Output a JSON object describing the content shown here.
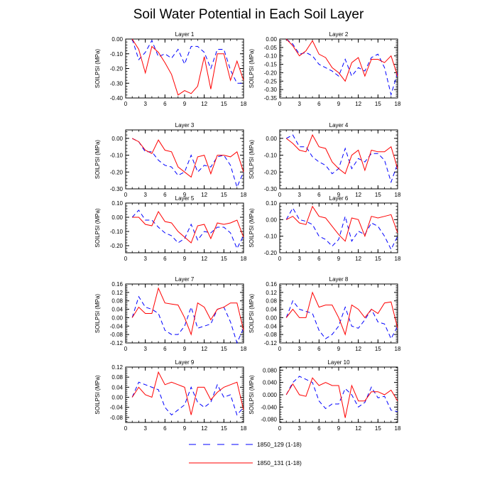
{
  "title": "Soil Water Potential in Each Soil Layer",
  "legend": [
    {
      "label": "1850_129 (1-18)",
      "color": "#0000ff",
      "dash": true
    },
    {
      "label": "1850_131 (1-18)",
      "color": "#ff0000",
      "dash": false
    }
  ],
  "chart_data": [
    {
      "type": "line",
      "title": "Layer 1",
      "ylabel": "SOILPSI  (MPa)",
      "xlim": [
        0,
        18
      ],
      "ylim": [
        -0.4,
        0
      ],
      "xticks": [
        0,
        3,
        6,
        9,
        12,
        15,
        18
      ],
      "xtick_labels": [
        "0",
        "3",
        "6",
        "9",
        "12",
        "15",
        "18"
      ],
      "yticks": [
        -0.4,
        -0.3,
        -0.2,
        -0.1,
        0
      ],
      "ytick_labels": [
        "-0.40",
        "-0.30",
        "-0.20",
        "-0.10",
        "0.00"
      ],
      "x": [
        1,
        2,
        3,
        4,
        5,
        6,
        7,
        8,
        9,
        10,
        11,
        12,
        13,
        14,
        15,
        16,
        17,
        18
      ],
      "series": [
        {
          "name": "1850_129 (1-18)",
          "values": [
            0,
            -0.14,
            -0.09,
            -0.01,
            -0.12,
            -0.1,
            -0.13,
            -0.07,
            -0.17,
            -0.05,
            -0.05,
            -0.09,
            -0.2,
            -0.07,
            -0.07,
            -0.21,
            -0.3,
            -0.3
          ]
        },
        {
          "name": "1850_131 (1-18)",
          "values": [
            0,
            -0.07,
            -0.23,
            -0.05,
            -0.09,
            -0.16,
            -0.24,
            -0.38,
            -0.35,
            -0.37,
            -0.32,
            -0.12,
            -0.34,
            -0.1,
            -0.1,
            -0.28,
            -0.15,
            -0.28
          ]
        }
      ]
    },
    {
      "type": "line",
      "title": "Layer 2",
      "ylabel": "SOILPSI  (MPa)",
      "xlim": [
        0,
        18
      ],
      "ylim": [
        -0.35,
        0
      ],
      "xticks": [
        0,
        3,
        6,
        9,
        12,
        15,
        18
      ],
      "xtick_labels": [
        "0",
        "3",
        "6",
        "9",
        "12",
        "15",
        "18"
      ],
      "yticks": [
        -0.35,
        -0.3,
        -0.25,
        -0.2,
        -0.15,
        -0.1,
        -0.05,
        0
      ],
      "ytick_labels": [
        "-0.35",
        "-0.30",
        "-0.25",
        "-0.20",
        "-0.15",
        "-0.10",
        "-0.05",
        "0.00"
      ],
      "x": [
        1,
        2,
        3,
        4,
        5,
        6,
        7,
        8,
        9,
        10,
        11,
        12,
        13,
        14,
        15,
        16,
        17,
        18
      ],
      "series": [
        {
          "name": "1850_129 (1-18)",
          "values": [
            0,
            -0.03,
            -0.09,
            -0.08,
            -0.1,
            -0.15,
            -0.17,
            -0.19,
            -0.22,
            -0.12,
            -0.22,
            -0.17,
            -0.19,
            -0.11,
            -0.09,
            -0.17,
            -0.33,
            -0.2
          ]
        },
        {
          "name": "1850_131 (1-18)",
          "values": [
            0,
            -0.04,
            -0.1,
            -0.07,
            -0.01,
            -0.09,
            -0.11,
            -0.17,
            -0.2,
            -0.25,
            -0.14,
            -0.11,
            -0.22,
            -0.12,
            -0.12,
            -0.14,
            -0.1,
            -0.22
          ]
        }
      ]
    },
    {
      "type": "line",
      "title": "Layer 3",
      "ylabel": "SOILPSI  (MPa)",
      "xlim": [
        0,
        18
      ],
      "ylim": [
        -0.3,
        0.05
      ],
      "xticks": [
        0,
        3,
        6,
        9,
        12,
        15,
        18
      ],
      "xtick_labels": [
        "0",
        "3",
        "6",
        "9",
        "12",
        "15",
        "18"
      ],
      "yticks": [
        -0.3,
        -0.2,
        -0.1,
        0
      ],
      "ytick_labels": [
        "-0.30",
        "-0.20",
        "-0.10",
        "0.00"
      ],
      "x": [
        1,
        2,
        3,
        4,
        5,
        6,
        7,
        8,
        9,
        10,
        11,
        12,
        13,
        14,
        15,
        16,
        17,
        18
      ],
      "series": [
        {
          "name": "1850_129 (1-18)",
          "values": [
            0,
            -0.02,
            -0.08,
            -0.08,
            -0.13,
            -0.16,
            -0.17,
            -0.22,
            -0.2,
            -0.1,
            -0.2,
            -0.16,
            -0.17,
            -0.11,
            -0.1,
            -0.16,
            -0.29,
            -0.2
          ]
        },
        {
          "name": "1850_131 (1-18)",
          "values": [
            0,
            -0.02,
            -0.07,
            -0.09,
            -0.01,
            -0.07,
            -0.08,
            -0.17,
            -0.2,
            -0.23,
            -0.11,
            -0.1,
            -0.21,
            -0.1,
            -0.1,
            -0.11,
            -0.08,
            -0.2
          ]
        }
      ]
    },
    {
      "type": "line",
      "title": "Layer 4",
      "ylabel": "SOILPSI  (MPa)",
      "xlim": [
        0,
        18
      ],
      "ylim": [
        -0.3,
        0.05
      ],
      "xticks": [
        0,
        3,
        6,
        9,
        12,
        15,
        18
      ],
      "xtick_labels": [
        "0",
        "3",
        "6",
        "9",
        "12",
        "15",
        "18"
      ],
      "yticks": [
        -0.3,
        -0.2,
        -0.1,
        0
      ],
      "ytick_labels": [
        "-0.30",
        "-0.20",
        "-0.10",
        "0.00"
      ],
      "x": [
        1,
        2,
        3,
        4,
        5,
        6,
        7,
        8,
        9,
        10,
        11,
        12,
        13,
        14,
        15,
        16,
        17,
        18
      ],
      "series": [
        {
          "name": "1850_129 (1-18)",
          "values": [
            0,
            0.02,
            -0.05,
            -0.05,
            -0.11,
            -0.14,
            -0.16,
            -0.21,
            -0.18,
            -0.06,
            -0.18,
            -0.12,
            -0.14,
            -0.09,
            -0.09,
            -0.13,
            -0.26,
            -0.15
          ]
        },
        {
          "name": "1850_131 (1-18)",
          "values": [
            0,
            -0.03,
            -0.07,
            -0.08,
            0.02,
            -0.05,
            -0.06,
            -0.14,
            -0.18,
            -0.21,
            -0.1,
            -0.07,
            -0.19,
            -0.07,
            -0.08,
            -0.08,
            -0.05,
            -0.18
          ]
        }
      ]
    },
    {
      "type": "line",
      "title": "Layer 5",
      "ylabel": "SOILPSI  (MPa)",
      "xlim": [
        0,
        18
      ],
      "ylim": [
        -0.25,
        0.1
      ],
      "xticks": [
        0,
        3,
        6,
        9,
        12,
        15,
        18
      ],
      "xtick_labels": [
        "0",
        "3",
        "6",
        "9",
        "12",
        "15",
        "18"
      ],
      "yticks": [
        -0.2,
        -0.1,
        0,
        0.1
      ],
      "ytick_labels": [
        "-0.20",
        "-0.10",
        "0.00",
        "0.10"
      ],
      "x": [
        1,
        2,
        3,
        4,
        5,
        6,
        7,
        8,
        9,
        10,
        11,
        12,
        13,
        14,
        15,
        16,
        17,
        18
      ],
      "series": [
        {
          "name": "1850_129 (1-18)",
          "values": [
            0,
            0.05,
            -0.02,
            -0.02,
            -0.07,
            -0.11,
            -0.13,
            -0.18,
            -0.15,
            -0.05,
            -0.16,
            -0.1,
            -0.11,
            -0.07,
            -0.07,
            -0.11,
            -0.22,
            -0.13
          ]
        },
        {
          "name": "1850_131 (1-18)",
          "values": [
            0,
            0,
            -0.05,
            -0.06,
            0.04,
            -0.03,
            -0.04,
            -0.1,
            -0.14,
            -0.18,
            -0.06,
            -0.05,
            -0.15,
            -0.04,
            -0.05,
            -0.04,
            -0.02,
            -0.14
          ]
        }
      ]
    },
    {
      "type": "line",
      "title": "Layer 6",
      "ylabel": "SOILPSI  (MPa)",
      "xlim": [
        0,
        18
      ],
      "ylim": [
        -0.2,
        0.1
      ],
      "xticks": [
        0,
        3,
        6,
        9,
        12,
        15,
        18
      ],
      "xtick_labels": [
        "0",
        "3",
        "6",
        "9",
        "12",
        "15",
        "18"
      ],
      "yticks": [
        -0.2,
        -0.1,
        0,
        0.1
      ],
      "ytick_labels": [
        "-0.20",
        "-0.10",
        "0.00",
        "0.10"
      ],
      "x": [
        1,
        2,
        3,
        4,
        5,
        6,
        7,
        8,
        9,
        10,
        11,
        12,
        13,
        14,
        15,
        16,
        17,
        18
      ],
      "series": [
        {
          "name": "1850_129 (1-18)",
          "values": [
            0,
            0.07,
            0,
            -0.01,
            -0.03,
            -0.1,
            -0.12,
            -0.16,
            -0.12,
            0.02,
            -0.13,
            -0.07,
            -0.09,
            -0.02,
            -0.04,
            -0.1,
            -0.18,
            -0.1
          ]
        },
        {
          "name": "1850_131 (1-18)",
          "values": [
            0,
            0.02,
            -0.02,
            -0.03,
            0.08,
            0.02,
            0.01,
            -0.04,
            -0.09,
            -0.13,
            0.01,
            0,
            -0.1,
            0.02,
            0.01,
            0.02,
            0.03,
            -0.08
          ]
        }
      ]
    },
    {
      "type": "line",
      "title": "Layer 7",
      "ylabel": "SOILPSI  (MPa)",
      "xlim": [
        0,
        18
      ],
      "ylim": [
        -0.12,
        0.16
      ],
      "xticks": [
        0,
        3,
        6,
        9,
        12,
        15,
        18
      ],
      "xtick_labels": [
        "0",
        "3",
        "6",
        "9",
        "12",
        "15",
        "18"
      ],
      "yticks": [
        -0.12,
        -0.08,
        -0.04,
        0,
        0.04,
        0.08,
        0.12,
        0.16
      ],
      "ytick_labels": [
        "-0.12",
        "-0.08",
        "-0.04",
        "0.00",
        "0.04",
        "0.08",
        "0.12",
        "0.16"
      ],
      "x": [
        1,
        2,
        3,
        4,
        5,
        6,
        7,
        8,
        9,
        10,
        11,
        12,
        13,
        14,
        15,
        16,
        17,
        18
      ],
      "series": [
        {
          "name": "1850_129 (1-18)",
          "values": [
            0,
            0.1,
            0.05,
            0.04,
            0.02,
            -0.06,
            -0.08,
            -0.08,
            -0.04,
            0.05,
            -0.05,
            -0.04,
            -0.03,
            0.04,
            0.05,
            -0.02,
            -0.12,
            -0.05
          ]
        },
        {
          "name": "1850_131 (1-18)",
          "values": [
            0,
            0.05,
            0.02,
            0.02,
            0.14,
            0.07,
            0.065,
            0.06,
            0,
            -0.08,
            0.07,
            0.05,
            -0.01,
            0.04,
            0.05,
            0.07,
            0.07,
            -0.06
          ]
        }
      ]
    },
    {
      "type": "line",
      "title": "Layer 8",
      "ylabel": "SOILPSI  (MPa)",
      "xlim": [
        0,
        18
      ],
      "ylim": [
        -0.12,
        0.16
      ],
      "xticks": [
        0,
        3,
        6,
        9,
        12,
        15,
        18
      ],
      "xtick_labels": [
        "0",
        "3",
        "6",
        "9",
        "12",
        "15",
        "18"
      ],
      "yticks": [
        -0.12,
        -0.08,
        -0.04,
        0,
        0.04,
        0.08,
        0.12,
        0.16
      ],
      "ytick_labels": [
        "-0.12",
        "-0.08",
        "-0.04",
        "0.00",
        "0.04",
        "0.08",
        "0.12",
        "0.16"
      ],
      "x": [
        1,
        2,
        3,
        4,
        5,
        6,
        7,
        8,
        9,
        10,
        11,
        12,
        13,
        14,
        15,
        16,
        17,
        18
      ],
      "series": [
        {
          "name": "1850_129 (1-18)",
          "values": [
            0,
            0.08,
            0.04,
            0.03,
            0.02,
            -0.06,
            -0.1,
            -0.08,
            -0.04,
            0.05,
            -0.04,
            -0.05,
            -0.01,
            0.04,
            -0.02,
            -0.03,
            -0.1,
            -0.04
          ]
        },
        {
          "name": "1850_131 (1-18)",
          "values": [
            0,
            0.04,
            0,
            0,
            0.12,
            0.05,
            0.06,
            0.06,
            0,
            -0.08,
            0.06,
            0.04,
            0,
            0.04,
            0.02,
            0.07,
            0.075,
            -0.05
          ]
        }
      ]
    },
    {
      "type": "line",
      "title": "Layer 9",
      "ylabel": "SOILPSI  (MPa)",
      "xlim": [
        0,
        18
      ],
      "ylim": [
        -0.1,
        0.12
      ],
      "xticks": [
        0,
        3,
        6,
        9,
        12,
        15,
        18
      ],
      "xtick_labels": [
        "0",
        "3",
        "6",
        "9",
        "12",
        "15",
        "18"
      ],
      "yticks": [
        -0.08,
        -0.04,
        0,
        0.04,
        0.08,
        0.12
      ],
      "ytick_labels": [
        "-0.08",
        "-0.04",
        "0.00",
        "0.04",
        "0.08",
        "0.12"
      ],
      "x": [
        1,
        2,
        3,
        4,
        5,
        6,
        7,
        8,
        9,
        10,
        11,
        12,
        13,
        14,
        15,
        16,
        17,
        18
      ],
      "series": [
        {
          "name": "1850_129 (1-18)",
          "values": [
            0,
            0.06,
            0.05,
            0.04,
            0.03,
            -0.04,
            -0.07,
            -0.05,
            -0.03,
            0.04,
            -0.02,
            -0.04,
            -0.02,
            0.05,
            0,
            0.01,
            -0.07,
            -0.04
          ]
        },
        {
          "name": "1850_131 (1-18)",
          "values": [
            0,
            0.04,
            0.01,
            0,
            0.1,
            0.05,
            0.06,
            0.05,
            0.04,
            -0.07,
            0.04,
            0.04,
            -0.01,
            0.02,
            0.04,
            0.05,
            0.06,
            -0.05
          ]
        }
      ]
    },
    {
      "type": "line",
      "title": "Layer 10",
      "ylabel": "SOILPSI  (MPa)",
      "xlim": [
        0,
        18
      ],
      "ylim": [
        -0.09,
        0.09
      ],
      "xticks": [
        0,
        3,
        6,
        9,
        12,
        15,
        18
      ],
      "xtick_labels": [
        "0",
        "3",
        "6",
        "9",
        "12",
        "15",
        "18"
      ],
      "yticks": [
        -0.08,
        -0.04,
        0,
        0.04,
        0.08
      ],
      "ytick_labels": [
        "-0.080",
        "-0.040",
        "0.000",
        "0.040",
        "0.080"
      ],
      "x": [
        1,
        2,
        3,
        4,
        5,
        6,
        7,
        8,
        9,
        10,
        11,
        12,
        13,
        14,
        15,
        16,
        17,
        18
      ],
      "series": [
        {
          "name": "1850_129 (1-18)",
          "values": [
            0,
            0.04,
            0.06,
            0.05,
            0.04,
            -0.02,
            -0.045,
            -0.03,
            -0.03,
            0.02,
            0,
            -0.04,
            -0.025,
            0.025,
            -0.01,
            -0.005,
            -0.05,
            -0.055
          ]
        },
        {
          "name": "1850_131 (1-18)",
          "values": [
            0,
            0.035,
            0,
            -0.005,
            0.055,
            0.03,
            0.04,
            0.03,
            0.03,
            -0.075,
            0.03,
            -0.02,
            -0.02,
            0.01,
            0.01,
            0,
            0.015,
            -0.02
          ]
        }
      ]
    }
  ]
}
